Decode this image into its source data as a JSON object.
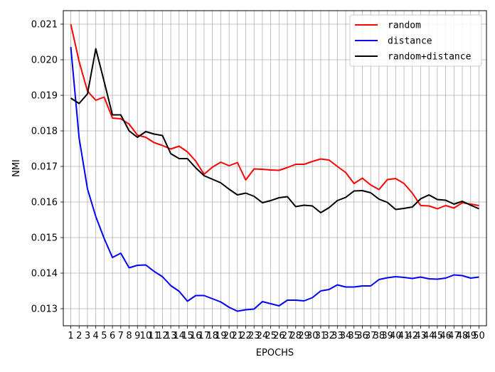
{
  "chart_data": {
    "type": "line",
    "title": "",
    "xlabel": "EPOCHS",
    "ylabel": "NMI",
    "x": [
      1,
      2,
      3,
      4,
      5,
      6,
      7,
      8,
      9,
      10,
      11,
      12,
      13,
      14,
      15,
      16,
      17,
      18,
      19,
      20,
      21,
      22,
      23,
      24,
      25,
      26,
      27,
      28,
      29,
      30,
      31,
      32,
      33,
      34,
      35,
      36,
      37,
      38,
      39,
      40,
      41,
      42,
      43,
      44,
      45,
      46,
      47,
      48,
      49,
      50
    ],
    "xlim": [
      0.1,
      50.9
    ],
    "ylim": [
      0.01252,
      0.02138
    ],
    "yticks": [
      0.013,
      0.014,
      0.015,
      0.016,
      0.017,
      0.018,
      0.019,
      0.02,
      0.021
    ],
    "ytick_labels": [
      "0.013",
      "0.014",
      "0.015",
      "0.016",
      "0.017",
      "0.018",
      "0.019",
      "0.020",
      "0.021"
    ],
    "grid": true,
    "legend_position": "top-right",
    "series": [
      {
        "name": "random",
        "color": "#ff0000",
        "values": [
          0.021,
          0.01995,
          0.01912,
          0.01886,
          0.01895,
          0.01836,
          0.01834,
          0.01819,
          0.01788,
          0.01782,
          0.01767,
          0.01759,
          0.01749,
          0.01757,
          0.01741,
          0.01715,
          0.01678,
          0.01698,
          0.01712,
          0.01702,
          0.01711,
          0.01662,
          0.01693,
          0.01692,
          0.0169,
          0.01689,
          0.01697,
          0.01706,
          0.01706,
          0.01714,
          0.01721,
          0.01718,
          0.017,
          0.01683,
          0.01652,
          0.01667,
          0.01648,
          0.01635,
          0.01663,
          0.01666,
          0.01652,
          0.01625,
          0.0159,
          0.01589,
          0.01581,
          0.0159,
          0.01583,
          0.01598,
          0.01594,
          0.0159
        ]
      },
      {
        "name": "distance",
        "color": "#0000ff",
        "values": [
          0.02036,
          0.0178,
          0.01637,
          0.01559,
          0.01498,
          0.01444,
          0.01456,
          0.01415,
          0.01422,
          0.01423,
          0.01405,
          0.0139,
          0.01365,
          0.01349,
          0.01321,
          0.01337,
          0.01337,
          0.01328,
          0.01319,
          0.01304,
          0.01293,
          0.01297,
          0.01299,
          0.0132,
          0.01314,
          0.01308,
          0.01324,
          0.01324,
          0.01322,
          0.01331,
          0.0135,
          0.01354,
          0.01367,
          0.01361,
          0.01361,
          0.01364,
          0.01364,
          0.01382,
          0.01387,
          0.0139,
          0.01388,
          0.01385,
          0.01389,
          0.01384,
          0.01383,
          0.01386,
          0.01395,
          0.01393,
          0.01386,
          0.01389
        ]
      },
      {
        "name": "random+distance",
        "color": "#000000",
        "values": [
          0.01892,
          0.01877,
          0.01904,
          0.02031,
          0.01939,
          0.01845,
          0.01845,
          0.018,
          0.01782,
          0.01798,
          0.01791,
          0.01787,
          0.01736,
          0.01722,
          0.01722,
          0.01696,
          0.01674,
          0.01664,
          0.01654,
          0.01636,
          0.0162,
          0.01625,
          0.01616,
          0.01598,
          0.01604,
          0.01612,
          0.01615,
          0.01587,
          0.01591,
          0.01589,
          0.0157,
          0.01584,
          0.01604,
          0.01613,
          0.01631,
          0.01632,
          0.01626,
          0.01608,
          0.01599,
          0.01579,
          0.01582,
          0.01586,
          0.01609,
          0.0162,
          0.01607,
          0.01605,
          0.01594,
          0.01602,
          0.01591,
          0.01581
        ]
      }
    ]
  }
}
